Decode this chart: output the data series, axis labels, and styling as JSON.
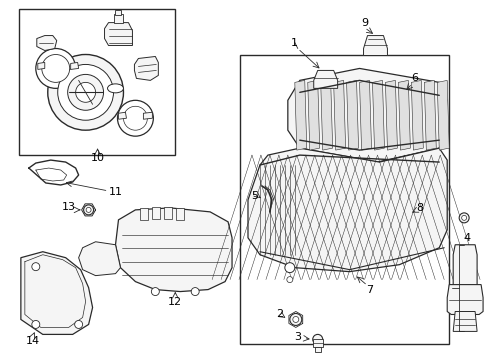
{
  "bg": "#ffffff",
  "lc": "#2a2a2a",
  "fig_w": 4.89,
  "fig_h": 3.6,
  "dpi": 100
}
